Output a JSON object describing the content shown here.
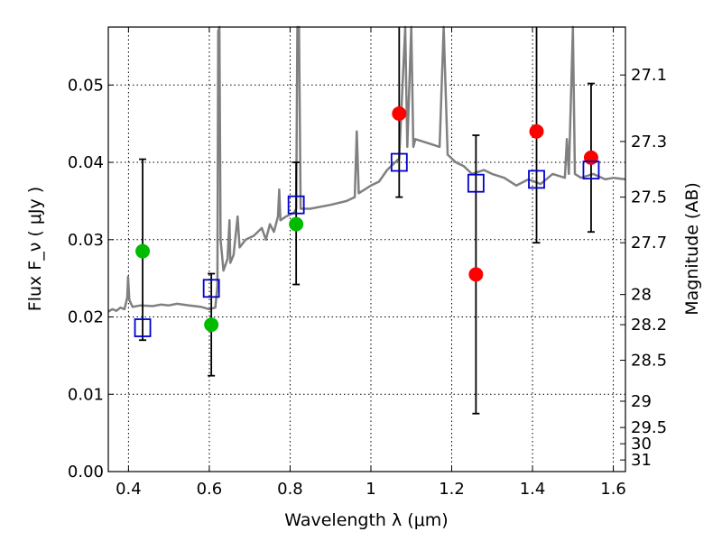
{
  "chart_data": {
    "type": "scatter",
    "xlabel": "Wavelength  λ (μm)",
    "ylabel": "Flux  F_ν  ( μJy )",
    "ylabel_right": "Magnitude (AB)",
    "xlim": [
      0.35,
      1.63
    ],
    "ylim": [
      0.0,
      0.0575
    ],
    "grid": true,
    "x_ticks": [
      0.4,
      0.6,
      0.8,
      1.0,
      1.2,
      1.4,
      1.6
    ],
    "x_tick_labels": [
      "0.4",
      "0.6",
      "0.8",
      "1",
      "1.2",
      "1.4",
      "1.6"
    ],
    "y_ticks": [
      0.0,
      0.01,
      0.02,
      0.03,
      0.04,
      0.05
    ],
    "y_tick_labels": [
      "0.00",
      "0.01",
      "0.02",
      "0.03",
      "0.04",
      "0.05"
    ],
    "right_ticks": [
      {
        "label": "27.1",
        "flux": 0.0513
      },
      {
        "label": "27.3",
        "flux": 0.0427
      },
      {
        "label": "27.5",
        "flux": 0.0355
      },
      {
        "label": "27.7",
        "flux": 0.0296
      },
      {
        "label": "28",
        "flux": 0.0229
      },
      {
        "label": "28.2",
        "flux": 0.019
      },
      {
        "label": "28.5",
        "flux": 0.0144
      },
      {
        "label": "29",
        "flux": 0.0091
      },
      {
        "label": "29.5",
        "flux": 0.0057
      },
      {
        "label": "30",
        "flux": 0.0036
      },
      {
        "label": "31",
        "flux": 0.0015
      }
    ],
    "series": [
      {
        "color": "#808080",
        "style": "line",
        "points": [
          [
            0.35,
            0.0207
          ],
          [
            0.36,
            0.021
          ],
          [
            0.37,
            0.0208
          ],
          [
            0.38,
            0.0212
          ],
          [
            0.39,
            0.021
          ],
          [
            0.397,
            0.0225
          ],
          [
            0.399,
            0.0252
          ],
          [
            0.402,
            0.0222
          ],
          [
            0.41,
            0.0213
          ],
          [
            0.43,
            0.0215
          ],
          [
            0.46,
            0.0214
          ],
          [
            0.48,
            0.0216
          ],
          [
            0.5,
            0.0215
          ],
          [
            0.52,
            0.0217
          ],
          [
            0.55,
            0.0215
          ],
          [
            0.58,
            0.0213
          ],
          [
            0.6,
            0.021
          ],
          [
            0.615,
            0.0212
          ],
          [
            0.62,
            0.024
          ],
          [
            0.622,
            0.057
          ],
          [
            0.625,
            0.0575
          ],
          [
            0.628,
            0.03
          ],
          [
            0.635,
            0.026
          ],
          [
            0.645,
            0.0275
          ],
          [
            0.65,
            0.0325
          ],
          [
            0.652,
            0.027
          ],
          [
            0.66,
            0.028
          ],
          [
            0.67,
            0.033
          ],
          [
            0.675,
            0.029
          ],
          [
            0.69,
            0.03
          ],
          [
            0.71,
            0.0305
          ],
          [
            0.73,
            0.0315
          ],
          [
            0.74,
            0.03
          ],
          [
            0.75,
            0.032
          ],
          [
            0.76,
            0.031
          ],
          [
            0.77,
            0.033
          ],
          [
            0.773,
            0.0365
          ],
          [
            0.776,
            0.0325
          ],
          [
            0.79,
            0.033
          ],
          [
            0.81,
            0.0335
          ],
          [
            0.815,
            0.034
          ],
          [
            0.818,
            0.0575
          ],
          [
            0.822,
            0.0575
          ],
          [
            0.826,
            0.034
          ],
          [
            0.85,
            0.034
          ],
          [
            0.9,
            0.0345
          ],
          [
            0.94,
            0.035
          ],
          [
            0.96,
            0.0355
          ],
          [
            0.965,
            0.044
          ],
          [
            0.97,
            0.036
          ],
          [
            1.0,
            0.037
          ],
          [
            1.02,
            0.0375
          ],
          [
            1.04,
            0.039
          ],
          [
            1.06,
            0.04
          ],
          [
            1.07,
            0.0405
          ],
          [
            1.085,
            0.0575
          ],
          [
            1.09,
            0.042
          ],
          [
            1.1,
            0.0575
          ],
          [
            1.105,
            0.042
          ],
          [
            1.11,
            0.043
          ],
          [
            1.14,
            0.0425
          ],
          [
            1.17,
            0.042
          ],
          [
            1.18,
            0.0575
          ],
          [
            1.19,
            0.041
          ],
          [
            1.21,
            0.04
          ],
          [
            1.23,
            0.0395
          ],
          [
            1.25,
            0.0385
          ],
          [
            1.28,
            0.039
          ],
          [
            1.3,
            0.0385
          ],
          [
            1.33,
            0.038
          ],
          [
            1.36,
            0.037
          ],
          [
            1.39,
            0.0378
          ],
          [
            1.42,
            0.0372
          ],
          [
            1.45,
            0.0385
          ],
          [
            1.48,
            0.038
          ],
          [
            1.485,
            0.043
          ],
          [
            1.49,
            0.0385
          ],
          [
            1.5,
            0.0575
          ],
          [
            1.505,
            0.0385
          ],
          [
            1.52,
            0.038
          ],
          [
            1.55,
            0.0385
          ],
          [
            1.58,
            0.0378
          ],
          [
            1.6,
            0.038
          ],
          [
            1.63,
            0.0378
          ]
        ]
      },
      {
        "color": "#0000cc",
        "marker": "square",
        "x": [
          0.435,
          0.605,
          0.815,
          1.07,
          1.26,
          1.41,
          1.545
        ],
        "y": [
          0.0186,
          0.0237,
          0.0345,
          0.04,
          0.0373,
          0.0378,
          0.039
        ],
        "yerr_low": [
          0.017,
          0.0124,
          0.0242,
          0.0355,
          0.0075,
          0.0296,
          0.031
        ],
        "yerr_high": [
          0.0404,
          0.0256,
          0.04,
          0.0575,
          0.0435,
          0.0575,
          0.0502
        ]
      },
      {
        "color": "#00bb00",
        "marker": "circle",
        "x": [
          0.435,
          0.605,
          0.815
        ],
        "y": [
          0.0285,
          0.019,
          0.032
        ]
      },
      {
        "color": "#ff0000",
        "marker": "circle",
        "x": [
          1.07,
          1.26,
          1.41,
          1.545
        ],
        "y": [
          0.0463,
          0.0255,
          0.044,
          0.0406
        ]
      }
    ]
  }
}
